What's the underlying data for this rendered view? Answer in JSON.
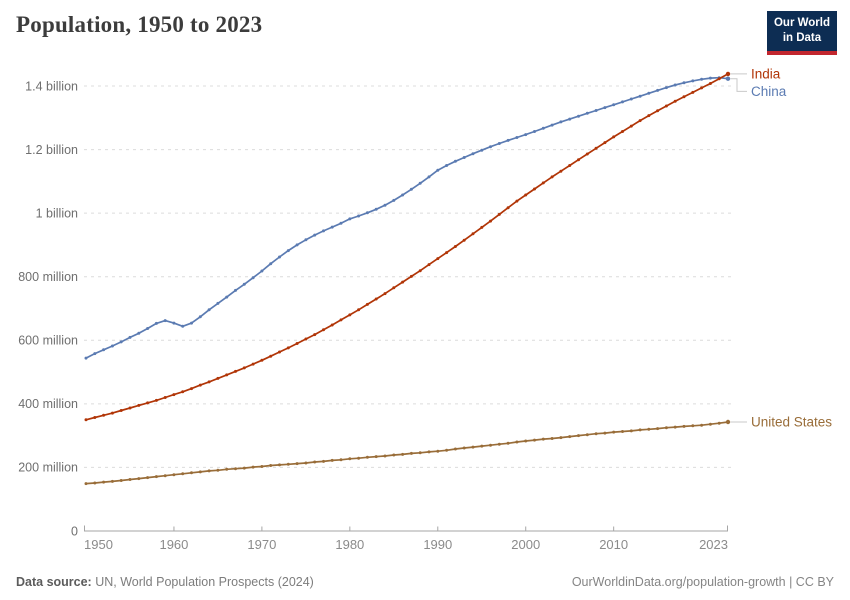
{
  "header": {
    "title": "Population, 1950 to 2023",
    "logo_line1": "Our World",
    "logo_line2": "in Data"
  },
  "footer": {
    "source_label": "Data source:",
    "source_text": "UN, World Population Prospects (2024)",
    "link_text": "OurWorldinData.org/population-growth | CC BY"
  },
  "colors": {
    "title": "#3c3c3c",
    "grid": "#dcdcdc",
    "axis": "#a6a6a6",
    "tick_label": "#6f6f6f",
    "x_tick_label": "#8b8b8b",
    "connector": "#c9c9c9",
    "logo_navy": "#0d2d53",
    "logo_red": "#c2262e",
    "india": "#b13507",
    "china": "#5b7bb2",
    "united_states": "#996d39"
  },
  "chart_data": {
    "type": "line",
    "title": "Population, 1950 to 2023",
    "xlabel": "",
    "ylabel": "",
    "unit": "people",
    "values_unit": "millions",
    "grid": "horizontal-dashed",
    "legend_position": "right-of-line-ends",
    "xlim": [
      1950,
      2023
    ],
    "ylim_millions": [
      0,
      1400
    ],
    "x_ticks": [
      1950,
      1960,
      1970,
      1980,
      1990,
      2000,
      2010,
      2023
    ],
    "y_ticks": [
      {
        "value": 0,
        "label": "0"
      },
      {
        "value": 200,
        "label": "200 million"
      },
      {
        "value": 400,
        "label": "400 million"
      },
      {
        "value": 600,
        "label": "600 million"
      },
      {
        "value": 800,
        "label": "800 million"
      },
      {
        "value": 1000,
        "label": "1 billion"
      },
      {
        "value": 1200,
        "label": "1.2 billion"
      },
      {
        "value": 1400,
        "label": "1.4 billion"
      }
    ],
    "years": [
      1950,
      1951,
      1952,
      1953,
      1954,
      1955,
      1956,
      1957,
      1958,
      1959,
      1960,
      1961,
      1962,
      1963,
      1964,
      1965,
      1966,
      1967,
      1968,
      1969,
      1970,
      1971,
      1972,
      1973,
      1974,
      1975,
      1976,
      1977,
      1978,
      1979,
      1980,
      1981,
      1982,
      1983,
      1984,
      1985,
      1986,
      1987,
      1988,
      1989,
      1990,
      1991,
      1992,
      1993,
      1994,
      1995,
      1996,
      1997,
      1998,
      1999,
      2000,
      2001,
      2002,
      2003,
      2004,
      2005,
      2006,
      2007,
      2008,
      2009,
      2010,
      2011,
      2012,
      2013,
      2014,
      2015,
      2016,
      2017,
      2018,
      2019,
      2020,
      2021,
      2022,
      2023
    ],
    "series": [
      {
        "name": "India",
        "color": "#b13507",
        "values": [
          350,
          357,
          364,
          371,
          379,
          387,
          395,
          403,
          411,
          420,
          429,
          438,
          448,
          459,
          469,
          480,
          491,
          502,
          513,
          525,
          537,
          550,
          563,
          576,
          590,
          604,
          618,
          633,
          648,
          664,
          680,
          696,
          713,
          730,
          747,
          765,
          783,
          801,
          819,
          838,
          857,
          876,
          895,
          915,
          935,
          955,
          975,
          996,
          1017,
          1038,
          1057,
          1076,
          1095,
          1114,
          1132,
          1150,
          1168,
          1186,
          1204,
          1222,
          1240,
          1257,
          1274,
          1291,
          1307,
          1322,
          1337,
          1352,
          1366,
          1380,
          1394,
          1408,
          1423,
          1438
        ]
      },
      {
        "name": "China",
        "color": "#5b7bb2",
        "values": [
          544,
          558,
          570,
          582,
          595,
          609,
          622,
          637,
          653,
          662,
          654,
          644,
          654,
          674,
          696,
          716,
          736,
          757,
          776,
          797,
          818,
          841,
          862,
          882,
          900,
          916,
          931,
          944,
          956,
          968,
          982,
          991,
          1001,
          1012,
          1025,
          1040,
          1057,
          1075,
          1094,
          1114,
          1135,
          1150,
          1163,
          1175,
          1187,
          1198,
          1209,
          1219,
          1229,
          1238,
          1247,
          1257,
          1267,
          1277,
          1287,
          1296,
          1305,
          1314,
          1323,
          1332,
          1341,
          1350,
          1359,
          1368,
          1377,
          1386,
          1395,
          1403,
          1410,
          1416,
          1421,
          1425,
          1426,
          1423
        ]
      },
      {
        "name": "United States",
        "color": "#996d39",
        "values": [
          149,
          151,
          154,
          156,
          159,
          162,
          165,
          168,
          171,
          174,
          177,
          180,
          183,
          186,
          189,
          191,
          194,
          196,
          198,
          201,
          203,
          206,
          208,
          210,
          212,
          214,
          217,
          219,
          222,
          224,
          227,
          229,
          232,
          234,
          236,
          239,
          241,
          244,
          246,
          249,
          251,
          254,
          258,
          261,
          264,
          267,
          270,
          273,
          276,
          280,
          283,
          286,
          289,
          291,
          294,
          297,
          300,
          303,
          306,
          308,
          311,
          313,
          315,
          318,
          320,
          322,
          325,
          327,
          329,
          331,
          333,
          336,
          339,
          343
        ]
      }
    ]
  }
}
